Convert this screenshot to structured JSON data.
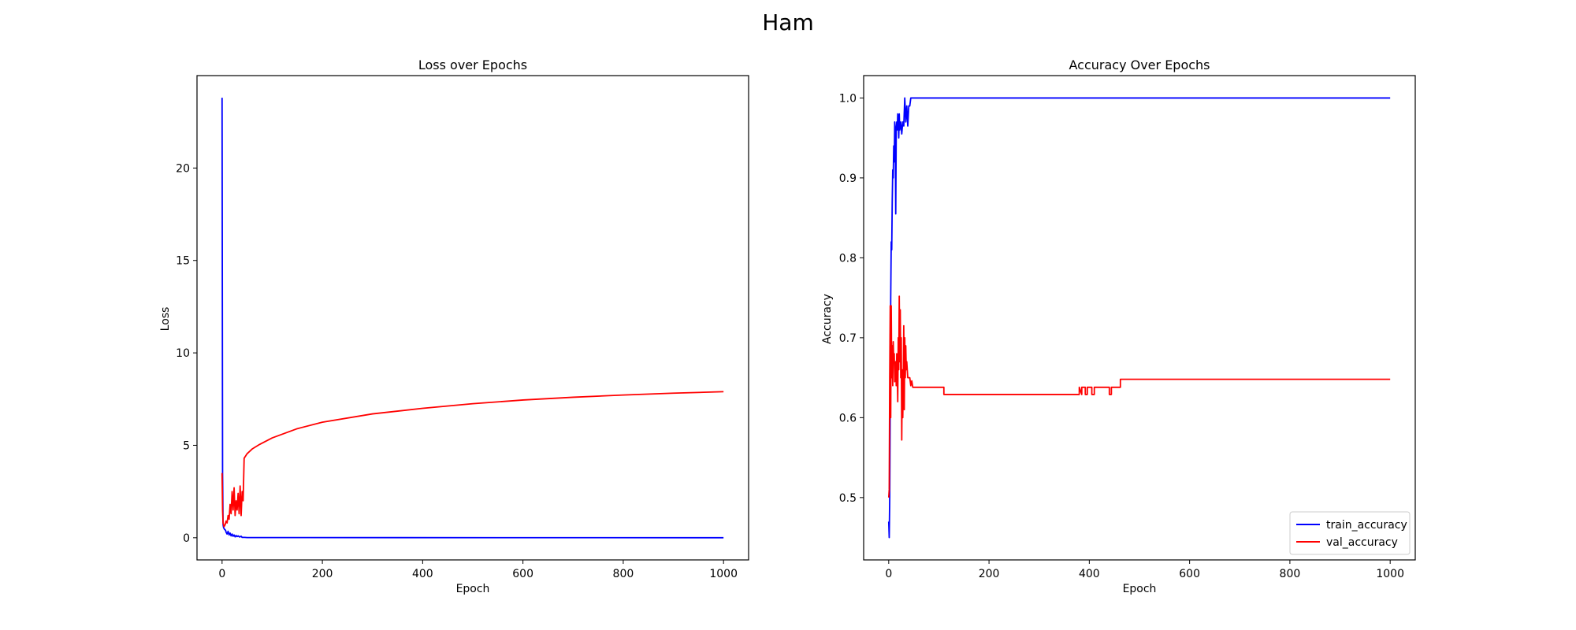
{
  "figure": {
    "title": "Ham"
  },
  "chart_data": [
    {
      "type": "line",
      "title": "Loss over Epochs",
      "xlabel": "Epoch",
      "ylabel": "Loss",
      "xlim": [
        -50,
        1050
      ],
      "ylim": [
        -1.2,
        25.0
      ],
      "xticks": [
        0,
        200,
        400,
        600,
        800,
        1000
      ],
      "yticks": [
        0,
        5,
        10,
        15,
        20
      ],
      "grid": false,
      "legend": null,
      "series": [
        {
          "color": "#0000ff",
          "points": [
            [
              0,
              23.8
            ],
            [
              1,
              3.5
            ],
            [
              2,
              0.7
            ],
            [
              3,
              0.55
            ],
            [
              5,
              0.45
            ],
            [
              7,
              0.4
            ],
            [
              8,
              0.3
            ],
            [
              10,
              0.2
            ],
            [
              12,
              0.35
            ],
            [
              14,
              0.15
            ],
            [
              16,
              0.25
            ],
            [
              18,
              0.1
            ],
            [
              20,
              0.2
            ],
            [
              22,
              0.08
            ],
            [
              24,
              0.15
            ],
            [
              26,
              0.05
            ],
            [
              28,
              0.12
            ],
            [
              30,
              0.06
            ],
            [
              32,
              0.1
            ],
            [
              35,
              0.04
            ],
            [
              38,
              0.08
            ],
            [
              40,
              0.02
            ],
            [
              45,
              0.02
            ],
            [
              50,
              0.01
            ],
            [
              100,
              0.01
            ],
            [
              1000,
              0.0
            ]
          ]
        },
        {
          "color": "#ff0000",
          "points": [
            [
              0,
              3.5
            ],
            [
              1,
              1.5
            ],
            [
              2,
              0.8
            ],
            [
              4,
              0.6
            ],
            [
              6,
              0.7
            ],
            [
              8,
              0.9
            ],
            [
              10,
              0.8
            ],
            [
              12,
              1.2
            ],
            [
              14,
              1.0
            ],
            [
              16,
              1.8
            ],
            [
              18,
              1.3
            ],
            [
              20,
              2.5
            ],
            [
              22,
              1.5
            ],
            [
              24,
              2.7
            ],
            [
              26,
              1.2
            ],
            [
              28,
              2.0
            ],
            [
              30,
              1.5
            ],
            [
              32,
              2.4
            ],
            [
              34,
              1.3
            ],
            [
              36,
              2.8
            ],
            [
              38,
              1.2
            ],
            [
              40,
              2.5
            ],
            [
              42,
              2.0
            ],
            [
              44,
              4.3
            ],
            [
              50,
              4.55
            ],
            [
              60,
              4.8
            ],
            [
              75,
              5.05
            ],
            [
              100,
              5.4
            ],
            [
              150,
              5.9
            ],
            [
              200,
              6.25
            ],
            [
              300,
              6.7
            ],
            [
              400,
              7.0
            ],
            [
              500,
              7.25
            ],
            [
              600,
              7.45
            ],
            [
              700,
              7.6
            ],
            [
              800,
              7.72
            ],
            [
              900,
              7.82
            ],
            [
              1000,
              7.9
            ]
          ]
        }
      ]
    },
    {
      "type": "line",
      "title": "Accuracy Over Epochs",
      "xlabel": "Epoch",
      "ylabel": "Accuracy",
      "xlim": [
        -50,
        1050
      ],
      "ylim": [
        0.422,
        1.028
      ],
      "xticks": [
        0,
        200,
        400,
        600,
        800,
        1000
      ],
      "yticks": [
        0.5,
        0.6,
        0.7,
        0.8,
        0.9,
        1.0
      ],
      "grid": false,
      "legend": "lower right",
      "series": [
        {
          "name": "train_accuracy",
          "color": "#0000ff",
          "points": [
            [
              0,
              0.47
            ],
            [
              1,
              0.45
            ],
            [
              2,
              0.5
            ],
            [
              3,
              0.62
            ],
            [
              4,
              0.75
            ],
            [
              5,
              0.82
            ],
            [
              6,
              0.81
            ],
            [
              7,
              0.87
            ],
            [
              8,
              0.91
            ],
            [
              9,
              0.9
            ],
            [
              10,
              0.94
            ],
            [
              11,
              0.92
            ],
            [
              12,
              0.97
            ],
            [
              13,
              0.96
            ],
            [
              14,
              0.855
            ],
            [
              15,
              0.96
            ],
            [
              16,
              0.97
            ],
            [
              17,
              0.96
            ],
            [
              18,
              0.98
            ],
            [
              19,
              0.97
            ],
            [
              20,
              0.95
            ],
            [
              21,
              0.98
            ],
            [
              22,
              0.96
            ],
            [
              24,
              0.97
            ],
            [
              26,
              0.955
            ],
            [
              28,
              0.97
            ],
            [
              30,
              0.965
            ],
            [
              32,
              1.0
            ],
            [
              34,
              0.97
            ],
            [
              36,
              0.99
            ],
            [
              38,
              0.965
            ],
            [
              40,
              0.99
            ],
            [
              42,
              0.99
            ],
            [
              44,
              1.0
            ],
            [
              1000,
              1.0
            ]
          ]
        },
        {
          "name": "val_accuracy",
          "color": "#ff0000",
          "points": [
            [
              0,
              0.5
            ],
            [
              1,
              0.51
            ],
            [
              2,
              0.65
            ],
            [
              3,
              0.74
            ],
            [
              4,
              0.6
            ],
            [
              5,
              0.74
            ],
            [
              6,
              0.65
            ],
            [
              7,
              0.69
            ],
            [
              8,
              0.64
            ],
            [
              9,
              0.695
            ],
            [
              10,
              0.67
            ],
            [
              11,
              0.68
            ],
            [
              12,
              0.645
            ],
            [
              13,
              0.66
            ],
            [
              14,
              0.67
            ],
            [
              15,
              0.64
            ],
            [
              16,
              0.68
            ],
            [
              17,
              0.655
            ],
            [
              18,
              0.62
            ],
            [
              19,
              0.7
            ],
            [
              20,
              0.66
            ],
            [
              21,
              0.752
            ],
            [
              22,
              0.67
            ],
            [
              23,
              0.735
            ],
            [
              24,
              0.65
            ],
            [
              25,
              0.7
            ],
            [
              26,
              0.572
            ],
            [
              27,
              0.66
            ],
            [
              28,
              0.6
            ],
            [
              29,
              0.64
            ],
            [
              30,
              0.715
            ],
            [
              31,
              0.61
            ],
            [
              32,
              0.7
            ],
            [
              33,
              0.65
            ],
            [
              34,
              0.69
            ],
            [
              35,
              0.66
            ],
            [
              36,
              0.67
            ],
            [
              38,
              0.65
            ],
            [
              42,
              0.65
            ],
            [
              44,
              0.64
            ],
            [
              46,
              0.646
            ],
            [
              48,
              0.638
            ],
            [
              110,
              0.638
            ],
            [
              110,
              0.629
            ],
            [
              380,
              0.629
            ],
            [
              380,
              0.638
            ],
            [
              385,
              0.629
            ],
            [
              385,
              0.638
            ],
            [
              392,
              0.638
            ],
            [
              392,
              0.629
            ],
            [
              396,
              0.629
            ],
            [
              396,
              0.638
            ],
            [
              405,
              0.638
            ],
            [
              405,
              0.629
            ],
            [
              410,
              0.629
            ],
            [
              410,
              0.638
            ],
            [
              440,
              0.638
            ],
            [
              440,
              0.629
            ],
            [
              444,
              0.629
            ],
            [
              444,
              0.638
            ],
            [
              462,
              0.638
            ],
            [
              462,
              0.648
            ],
            [
              1000,
              0.648
            ]
          ]
        }
      ]
    }
  ]
}
